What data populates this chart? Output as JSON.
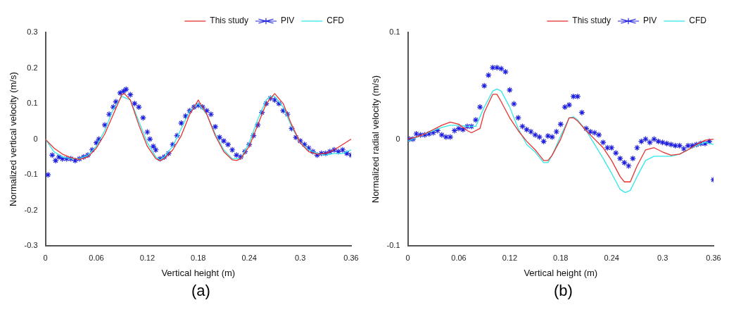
{
  "chart_data": [
    {
      "type": "line",
      "xlabel": "Vertical height (m)",
      "ylabel": "Normalized vertical velocity (m/s)",
      "xlim": [
        0,
        0.36
      ],
      "ylim": [
        -0.3,
        0.3
      ],
      "xticks": [
        0,
        0.06,
        0.12,
        0.18,
        0.24,
        0.3,
        0.36
      ],
      "yticks": [
        -0.3,
        -0.2,
        -0.1,
        0,
        0.1,
        0.2,
        0.3
      ],
      "grid": false,
      "legend": "top right",
      "annotations": [
        "(a)"
      ],
      "series": [
        {
          "name": "This study",
          "type": "line",
          "marker": "none",
          "color": "#e8312d",
          "x": [
            0,
            0.01,
            0.02,
            0.03,
            0.04,
            0.05,
            0.06,
            0.07,
            0.08,
            0.09,
            0.093,
            0.1,
            0.11,
            0.12,
            0.13,
            0.135,
            0.14,
            0.15,
            0.16,
            0.17,
            0.18,
            0.19,
            0.2,
            0.21,
            0.22,
            0.225,
            0.23,
            0.24,
            0.25,
            0.26,
            0.27,
            0.28,
            0.29,
            0.3,
            0.31,
            0.32,
            0.33,
            0.34,
            0.35,
            0.36
          ],
          "values": [
            0,
            -0.025,
            -0.042,
            -0.052,
            -0.057,
            -0.05,
            -0.025,
            0.015,
            0.07,
            0.125,
            0.128,
            0.11,
            0.04,
            -0.02,
            -0.055,
            -0.06,
            -0.055,
            -0.03,
            0.01,
            0.07,
            0.11,
            0.07,
            0.01,
            -0.035,
            -0.058,
            -0.06,
            -0.055,
            -0.02,
            0.04,
            0.1,
            0.128,
            0.1,
            0.04,
            -0.01,
            -0.035,
            -0.042,
            -0.04,
            -0.03,
            -0.015,
            0
          ]
        },
        {
          "name": "PIV",
          "type": "scatter",
          "marker": "cross",
          "color": "#2020e0",
          "x": [
            0.003,
            0.008,
            0.012,
            0.016,
            0.02,
            0.025,
            0.03,
            0.035,
            0.04,
            0.045,
            0.05,
            0.055,
            0.06,
            0.063,
            0.07,
            0.075,
            0.08,
            0.083,
            0.088,
            0.092,
            0.095,
            0.1,
            0.105,
            0.11,
            0.115,
            0.12,
            0.123,
            0.127,
            0.13,
            0.135,
            0.14,
            0.145,
            0.15,
            0.155,
            0.16,
            0.165,
            0.17,
            0.175,
            0.18,
            0.185,
            0.19,
            0.195,
            0.2,
            0.205,
            0.21,
            0.215,
            0.22,
            0.225,
            0.23,
            0.235,
            0.24,
            0.245,
            0.25,
            0.255,
            0.26,
            0.265,
            0.27,
            0.275,
            0.28,
            0.285,
            0.29,
            0.295,
            0.3,
            0.305,
            0.31,
            0.315,
            0.32,
            0.325,
            0.33,
            0.335,
            0.34,
            0.345,
            0.35,
            0.355,
            0.36
          ],
          "values": [
            -0.1,
            -0.045,
            -0.06,
            -0.05,
            -0.055,
            -0.055,
            -0.055,
            -0.06,
            -0.055,
            -0.05,
            -0.045,
            -0.03,
            -0.01,
            0,
            0.04,
            0.07,
            0.09,
            0.105,
            0.13,
            0.135,
            0.14,
            0.125,
            0.1,
            0.09,
            0.06,
            0.02,
            0,
            -0.02,
            -0.03,
            -0.055,
            -0.05,
            -0.04,
            -0.015,
            0.01,
            0.045,
            0.065,
            0.08,
            0.09,
            0.095,
            0.09,
            0.08,
            0.07,
            0.035,
            0.005,
            -0.005,
            -0.015,
            -0.03,
            -0.045,
            -0.05,
            -0.035,
            -0.015,
            0.01,
            0.04,
            0.075,
            0.1,
            0.115,
            0.11,
            0.1,
            0.08,
            0.07,
            0.03,
            0.005,
            -0.005,
            -0.015,
            -0.025,
            -0.035,
            -0.045,
            -0.04,
            -0.04,
            -0.035,
            -0.03,
            -0.035,
            -0.03,
            -0.04,
            -0.045
          ]
        },
        {
          "name": "CFD",
          "type": "line",
          "marker": "none",
          "color": "#33e8e8",
          "x": [
            0,
            0.01,
            0.02,
            0.03,
            0.04,
            0.05,
            0.06,
            0.07,
            0.08,
            0.09,
            0.1,
            0.11,
            0.12,
            0.13,
            0.135,
            0.14,
            0.15,
            0.16,
            0.17,
            0.18,
            0.19,
            0.2,
            0.21,
            0.22,
            0.23,
            0.24,
            0.25,
            0.26,
            0.265,
            0.27,
            0.28,
            0.29,
            0.3,
            0.31,
            0.32,
            0.33,
            0.34,
            0.35,
            0.36
          ],
          "values": [
            0,
            -0.035,
            -0.05,
            -0.055,
            -0.055,
            -0.045,
            -0.02,
            0.025,
            0.085,
            0.12,
            0.11,
            0.05,
            -0.01,
            -0.05,
            -0.058,
            -0.05,
            -0.02,
            0.03,
            0.08,
            0.1,
            0.07,
            0.015,
            -0.03,
            -0.055,
            -0.055,
            -0.01,
            0.055,
            0.11,
            0.12,
            0.12,
            0.09,
            0.035,
            -0.01,
            -0.03,
            -0.04,
            -0.045,
            -0.04,
            -0.04,
            -0.03
          ]
        }
      ]
    },
    {
      "type": "line",
      "xlabel": "Vertical height (m)",
      "ylabel": "Normalized radial velocity (m/s)",
      "xlim": [
        0,
        0.36
      ],
      "ylim": [
        -0.1,
        0.1
      ],
      "xticks": [
        0,
        0.06,
        0.12,
        0.18,
        0.24,
        0.3,
        0.36
      ],
      "yticks": [
        -0.1,
        0,
        0.1
      ],
      "grid": false,
      "legend": "top right",
      "annotations": [
        "(b)"
      ],
      "series": [
        {
          "name": "This study",
          "type": "line",
          "marker": "none",
          "color": "#e8312d",
          "x": [
            0,
            0.01,
            0.02,
            0.03,
            0.04,
            0.05,
            0.06,
            0.07,
            0.075,
            0.085,
            0.09,
            0.1,
            0.105,
            0.11,
            0.12,
            0.13,
            0.14,
            0.15,
            0.16,
            0.165,
            0.17,
            0.18,
            0.19,
            0.195,
            0.2,
            0.21,
            0.22,
            0.23,
            0.24,
            0.25,
            0.255,
            0.262,
            0.27,
            0.28,
            0.29,
            0.3,
            0.31,
            0.32,
            0.33,
            0.34,
            0.35,
            0.36
          ],
          "values": [
            0,
            0.002,
            0.005,
            0.009,
            0.013,
            0.016,
            0.014,
            0.008,
            0.006,
            0.01,
            0.025,
            0.042,
            0.042,
            0.035,
            0.02,
            0.008,
            -0.002,
            -0.01,
            -0.02,
            -0.02,
            -0.015,
            0,
            0.02,
            0.02,
            0.017,
            0.008,
            0,
            -0.008,
            -0.02,
            -0.035,
            -0.04,
            -0.04,
            -0.025,
            -0.01,
            -0.008,
            -0.012,
            -0.015,
            -0.014,
            -0.01,
            -0.005,
            -0.001,
            0
          ]
        },
        {
          "name": "PIV",
          "type": "scatter",
          "marker": "cross",
          "color": "#2020e0",
          "x": [
            0.002,
            0.006,
            0.01,
            0.015,
            0.02,
            0.025,
            0.03,
            0.035,
            0.04,
            0.045,
            0.05,
            0.055,
            0.06,
            0.065,
            0.07,
            0.075,
            0.08,
            0.085,
            0.09,
            0.095,
            0.1,
            0.105,
            0.11,
            0.115,
            0.12,
            0.125,
            0.13,
            0.135,
            0.14,
            0.145,
            0.15,
            0.155,
            0.16,
            0.165,
            0.17,
            0.175,
            0.18,
            0.185,
            0.19,
            0.195,
            0.2,
            0.205,
            0.21,
            0.215,
            0.22,
            0.225,
            0.23,
            0.235,
            0.24,
            0.245,
            0.25,
            0.255,
            0.26,
            0.265,
            0.27,
            0.275,
            0.28,
            0.285,
            0.29,
            0.295,
            0.3,
            0.305,
            0.31,
            0.315,
            0.32,
            0.325,
            0.33,
            0.335,
            0.34,
            0.345,
            0.35,
            0.355,
            0.36
          ],
          "values": [
            0,
            0,
            0.005,
            0.004,
            0.004,
            0.005,
            0.006,
            0.008,
            0.004,
            0.002,
            0.002,
            0.008,
            0.01,
            0.009,
            0.012,
            0.012,
            0.018,
            0.03,
            0.05,
            0.06,
            0.067,
            0.067,
            0.066,
            0.063,
            0.046,
            0.033,
            0.02,
            0.012,
            0.009,
            0.007,
            0.004,
            0.002,
            -0.002,
            0.003,
            0.002,
            0.007,
            0.014,
            0.03,
            0.032,
            0.04,
            0.04,
            0.025,
            0.01,
            0.007,
            0.006,
            0.004,
            -0.003,
            -0.008,
            -0.008,
            -0.013,
            -0.018,
            -0.022,
            -0.025,
            -0.018,
            -0.008,
            -0.002,
            0,
            -0.003,
            0,
            -0.002,
            -0.003,
            -0.004,
            -0.005,
            -0.006,
            -0.006,
            -0.009,
            -0.006,
            -0.006,
            -0.005,
            -0.004,
            -0.004,
            -0.002,
            -0.038
          ]
        },
        {
          "name": "CFD",
          "type": "line",
          "marker": "none",
          "color": "#33e8e8",
          "x": [
            0,
            0.02,
            0.04,
            0.05,
            0.06,
            0.07,
            0.08,
            0.09,
            0.1,
            0.105,
            0.11,
            0.12,
            0.13,
            0.14,
            0.15,
            0.16,
            0.165,
            0.17,
            0.18,
            0.19,
            0.195,
            0.2,
            0.21,
            0.22,
            0.23,
            0.24,
            0.25,
            0.256,
            0.262,
            0.27,
            0.28,
            0.29,
            0.3,
            0.31,
            0.32,
            0.33,
            0.34,
            0.35,
            0.36
          ],
          "values": [
            -0.002,
            0.005,
            0.011,
            0.013,
            0.013,
            0.012,
            0.012,
            0.03,
            0.045,
            0.047,
            0.045,
            0.03,
            0.01,
            -0.005,
            -0.012,
            -0.022,
            -0.022,
            -0.015,
            0.003,
            0.02,
            0.021,
            0.018,
            0.008,
            -0.005,
            -0.018,
            -0.032,
            -0.047,
            -0.05,
            -0.048,
            -0.035,
            -0.02,
            -0.016,
            -0.016,
            -0.016,
            -0.014,
            -0.01,
            -0.006,
            -0.003,
            -0.005
          ]
        }
      ]
    }
  ]
}
